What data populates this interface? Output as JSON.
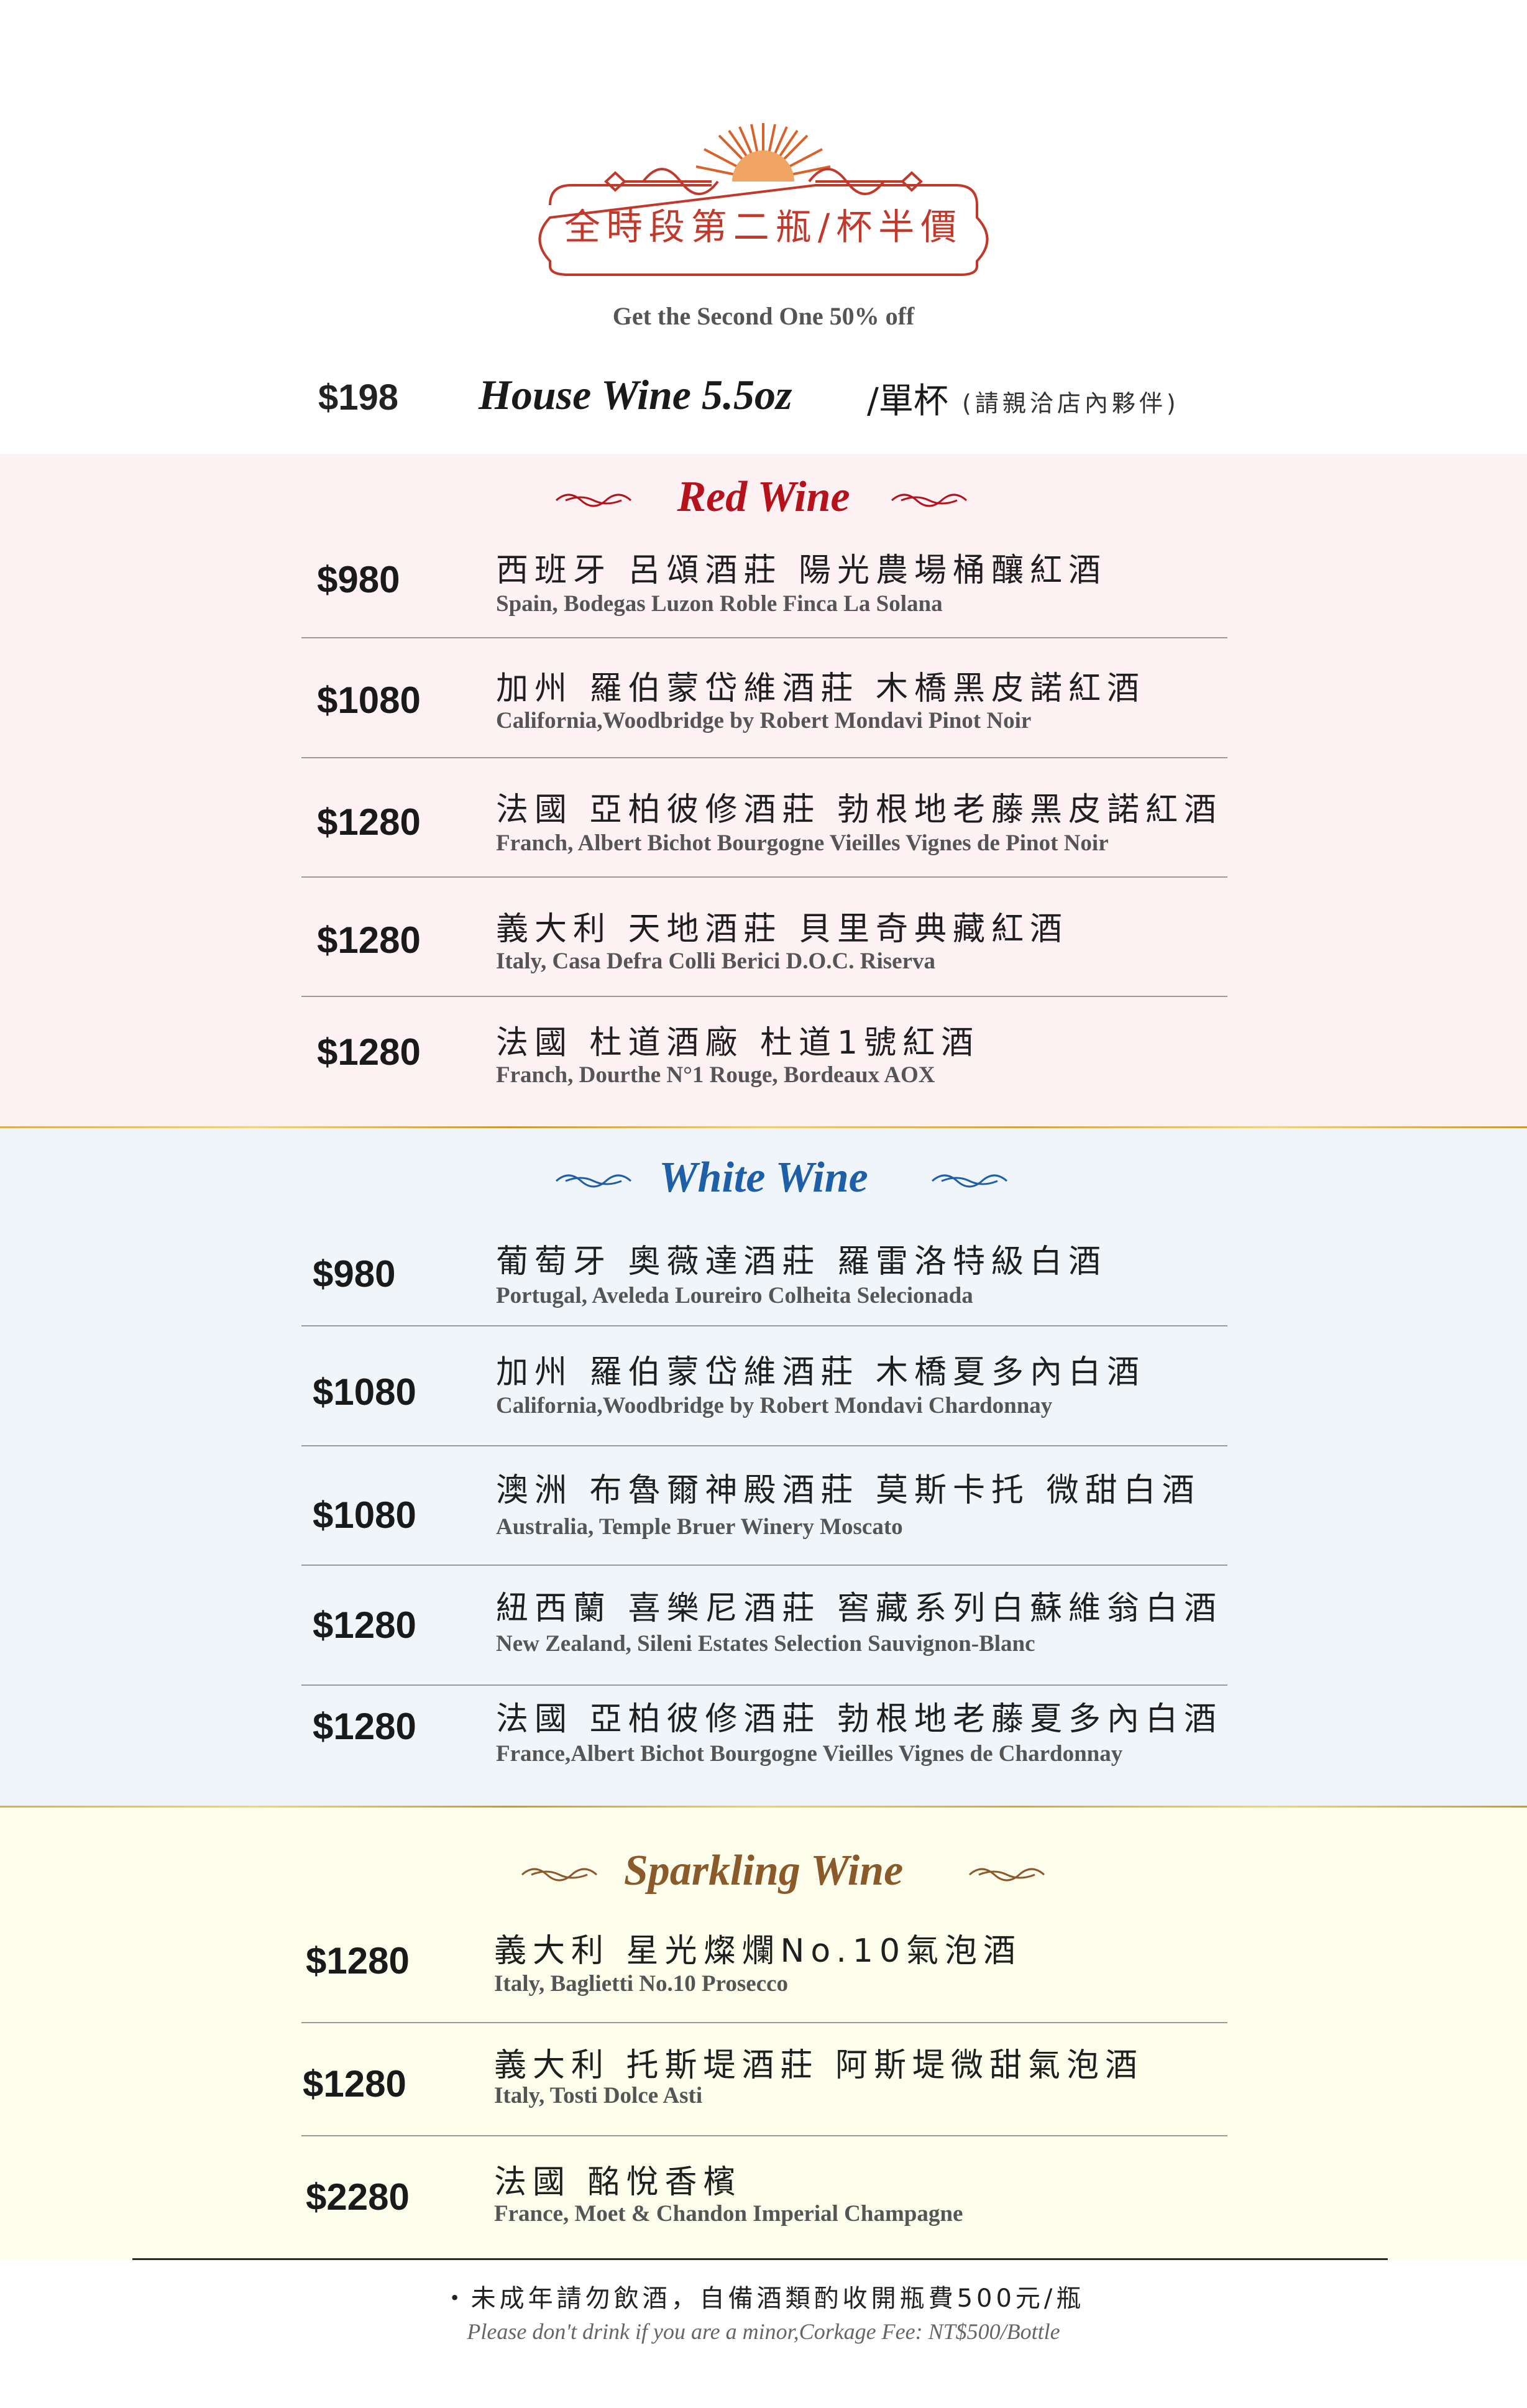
{
  "header": {
    "promo_zh": "全時段第二瓶/杯半價",
    "promo_en": "Get the Second One 50% off"
  },
  "house_wine": {
    "price": "$198",
    "name": "House Wine 5.5oz",
    "unit": "/單杯",
    "note": "(請親洽店內夥伴)"
  },
  "colors": {
    "red_title": "#b5121b",
    "white_title": "#1f5fa8",
    "sparkling_title": "#8a5a2b",
    "badge": "#c0392b",
    "red_bg": "#fdf1f3",
    "white_bg": "#eff5f9",
    "sparkling_bg": "#fdfdec",
    "gold": "#d9b04a"
  },
  "red_wine": {
    "title": "Red Wine",
    "items": [
      {
        "price": "$980",
        "zh": "西班牙 呂頌酒莊 陽光農場桶釀紅酒",
        "en": "Spain, Bodegas Luzon Roble Finca La Solana"
      },
      {
        "price": "$1080",
        "zh": "加州 羅伯蒙岱維酒莊 木橋黑皮諾紅酒",
        "en": "California,Woodbridge by Robert Mondavi Pinot Noir"
      },
      {
        "price": "$1280",
        "zh": "法國 亞柏彼修酒莊 勃根地老藤黑皮諾紅酒",
        "en": "Franch, Albert Bichot Bourgogne Vieilles Vignes de Pinot Noir"
      },
      {
        "price": "$1280",
        "zh": "義大利 天地酒莊 貝里奇典藏紅酒",
        "en": "Italy, Casa Defra Colli Berici D.O.C. Riserva"
      },
      {
        "price": "$1280",
        "zh": "法國 杜道酒廠 杜道1號紅酒",
        "en": "Franch, Dourthe N°1 Rouge, Bordeaux AOX"
      }
    ]
  },
  "white_wine": {
    "title": "White Wine",
    "items": [
      {
        "price": "$980",
        "zh": "葡萄牙 奧薇達酒莊 羅雷洛特級白酒",
        "en": "Portugal, Aveleda Loureiro Colheita Selecionada"
      },
      {
        "price": "$1080",
        "zh": "加州 羅伯蒙岱維酒莊 木橋夏多內白酒",
        "en": "California,Woodbridge by Robert Mondavi Chardonnay"
      },
      {
        "price": "$1080",
        "zh": "澳洲 布魯爾神殿酒莊 莫斯卡托 微甜白酒",
        "en": "Australia, Temple Bruer Winery Moscato"
      },
      {
        "price": "$1280",
        "zh": "紐西蘭 喜樂尼酒莊 窖藏系列白蘇維翁白酒",
        "en": "New Zealand, Sileni Estates Selection Sauvignon-Blanc"
      },
      {
        "price": "$1280",
        "zh": "法國 亞柏彼修酒莊 勃根地老藤夏多內白酒",
        "en": "France,Albert Bichot Bourgogne Vieilles Vignes de Chardonnay"
      }
    ]
  },
  "sparkling_wine": {
    "title": "Sparkling Wine",
    "items": [
      {
        "price": "$1280",
        "zh": "義大利 星光燦爛No.10氣泡酒",
        "en": "Italy, Baglietti No.10 Prosecco"
      },
      {
        "price": "$1280",
        "zh": "義大利 托斯堤酒莊 阿斯堤微甜氣泡酒",
        "en": "Italy, Tosti Dolce Asti"
      },
      {
        "price": "$2280",
        "zh": "法國 酩悅香檳",
        "en": "France, Moet & Chandon Imperial Champagne"
      }
    ]
  },
  "footer": {
    "zh": "・未成年請勿飲酒，自備酒類酌收開瓶費500元/瓶",
    "en": "Please don't drink if you are a minor,Corkage Fee: NT$500/Bottle"
  }
}
